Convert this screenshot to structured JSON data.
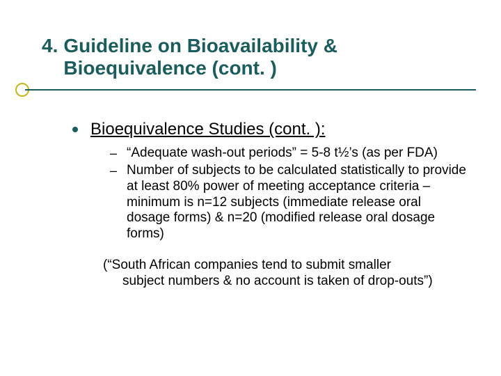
{
  "colors": {
    "title": "#1b5d5d",
    "accent_circle": "#c9b517",
    "underline": "#1b5d5d",
    "body_text": "#000000",
    "background": "#ffffff"
  },
  "title": {
    "number": "4.",
    "line1": "Guideline on Bioavailability &",
    "line2": "Bioequivalence (cont. )"
  },
  "section_heading": "Bioequivalence Studies (cont. ):",
  "sub_bullets": [
    "“Adequate wash-out periods” = 5-8 t½’s (as per FDA)",
    "Number of subjects to be calculated statistically to provide at least 80% power of meeting acceptance criteria – minimum is n=12 subjects (immediate release oral dosage forms) & n=20 (modified release oral dosage forms)"
  ],
  "footnote": {
    "line1": "(“South African companies tend to submit smaller",
    "line2": "subject numbers & no account is taken of drop-outs”)"
  },
  "typography": {
    "title_fontsize": 28,
    "heading_fontsize": 24,
    "body_fontsize": 19
  }
}
